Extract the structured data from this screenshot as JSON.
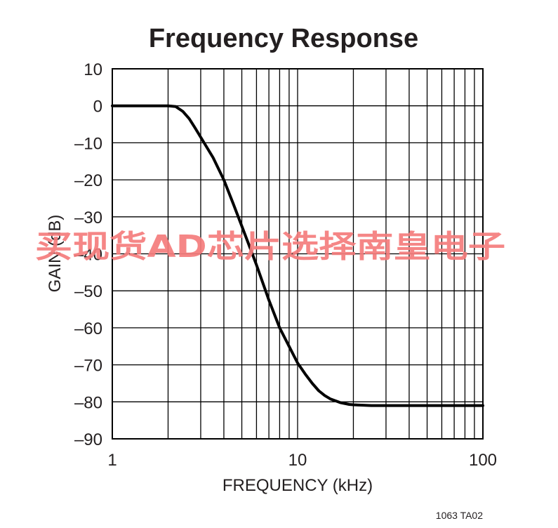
{
  "chart_data": {
    "type": "line",
    "title": "Frequency Response",
    "xlabel": "FREQUENCY (kHz)",
    "ylabel": "GAIN (dB)",
    "x_scale": "log",
    "xlim": [
      1,
      100
    ],
    "ylim": [
      -90,
      10
    ],
    "x_ticks": [
      "1",
      "10",
      "100"
    ],
    "y_ticks": [
      "10",
      "0",
      "–10",
      "–20",
      "–30",
      "–40",
      "–50",
      "–60",
      "–70",
      "–80",
      "–90"
    ],
    "grid": true,
    "series": [
      {
        "x": [
          1,
          1.5,
          2,
          2.2,
          2.4,
          2.6,
          2.8,
          3,
          3.5,
          4,
          4.5,
          5,
          5.5,
          6,
          7,
          8,
          9,
          10,
          11,
          12,
          13,
          14,
          15,
          17,
          19,
          20,
          22,
          25,
          30,
          40,
          50,
          70,
          100
        ],
        "y": [
          0,
          0,
          0,
          -0.2,
          -1.5,
          -3.5,
          -6,
          -8.5,
          -14,
          -20,
          -26.5,
          -32.5,
          -38,
          -43,
          -52.5,
          -60,
          -65,
          -69.5,
          -72.5,
          -75,
          -77,
          -78.3,
          -79.2,
          -80.2,
          -80.7,
          -80.8,
          -80.9,
          -81,
          -81,
          -81,
          -81,
          -81,
          -81
        ],
        "color": "#000000"
      }
    ],
    "annotations": [
      "1063 TA02"
    ]
  },
  "watermark": {
    "text": "买现货AD芯片选择南皇电子",
    "color": "#f47c7c"
  }
}
